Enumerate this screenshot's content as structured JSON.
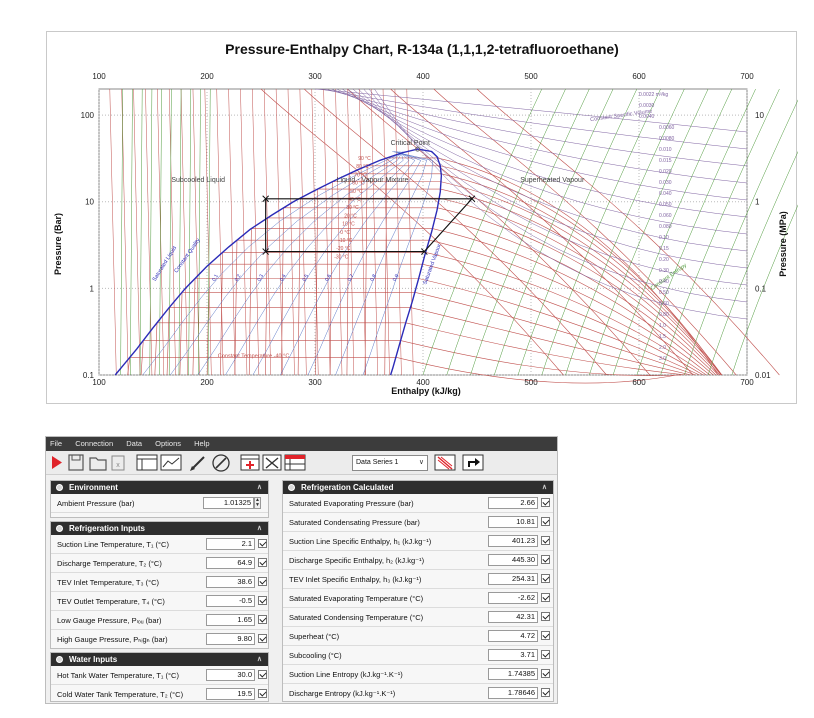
{
  "chart_data": {
    "type": "line",
    "title": "Pressure-Enthalpy Chart, R-134a (1,1,1,2-tetrafluoroethane)",
    "xlabel": "Enthalpy (kJ/kg)",
    "ylabel_left": "Pressure (Bar)",
    "ylabel_right": "Pressure (MPa)",
    "xlim": [
      100,
      700
    ],
    "ylim": [
      0.1,
      200
    ],
    "yscale": "log",
    "x_ticks": [
      "100",
      "200",
      "300",
      "400",
      "500",
      "600",
      "700"
    ],
    "y_ticks_left": [
      "0.1",
      "1",
      "10",
      "100"
    ],
    "y_ticks_right": [
      "0.01",
      "0.1",
      "1",
      "10"
    ],
    "region_labels": [
      "Subcooled Liquid",
      "Liquid - Vapour Mixture",
      "Superheated Vapour",
      "Critical Point"
    ],
    "curve_labels": [
      "Saturated Liquid",
      "Saturated Vapour",
      "Constant Quality",
      "Constant Entropy",
      "Constant Temperature -40 °C",
      "Constant Specific Volume"
    ],
    "quality_labels": [
      "0.1",
      "0.2",
      "0.3",
      "0.4",
      "0.5",
      "0.6",
      "0.7",
      "0.8",
      "0.9"
    ],
    "volume_labels": [
      "0.0022 m³/kg",
      "0.0030",
      "0.0040",
      "0.0060",
      "0.0080",
      "0.010",
      "0.015",
      "0.020",
      "0.030",
      "0.040",
      "0.050",
      "0.060",
      "0.080",
      "0.10",
      "0.15",
      "0.20",
      "0.30",
      "0.40",
      "0.50",
      "0.60",
      "0.80",
      "1.0",
      "1.5",
      "2.0",
      "3.0"
    ],
    "temperature_labels": [
      "90 °C",
      "80 °C",
      "70 °C",
      "60 °C",
      "50 °C",
      "40 °C",
      "30 °C",
      "20 °C",
      "10 °C",
      "0 °C",
      "-10 °C",
      "-20 °C",
      "-30 °C"
    ],
    "saturation_dome": {
      "liquid": [
        [
          115,
          0.1
        ],
        [
          135,
          0.2
        ],
        [
          150,
          0.35
        ],
        [
          165,
          0.6
        ],
        [
          180,
          1.0
        ],
        [
          200,
          1.8
        ],
        [
          220,
          3.0
        ],
        [
          240,
          4.8
        ],
        [
          260,
          7.0
        ],
        [
          280,
          10.0
        ],
        [
          300,
          13.5
        ],
        [
          320,
          18.0
        ],
        [
          340,
          23.5
        ],
        [
          360,
          30.0
        ],
        [
          380,
          36.5
        ],
        [
          395,
          40.5
        ]
      ],
      "vapour": [
        [
          395,
          40.5
        ],
        [
          408,
          38.0
        ],
        [
          413,
          33.0
        ],
        [
          416,
          26.0
        ],
        [
          417,
          20.0
        ],
        [
          416,
          13.0
        ],
        [
          413,
          8.0
        ],
        [
          408,
          4.5
        ],
        [
          402,
          2.5
        ],
        [
          396,
          1.3
        ],
        [
          390,
          0.7
        ],
        [
          384,
          0.4
        ],
        [
          378,
          0.22
        ],
        [
          372,
          0.12
        ],
        [
          370,
          0.1
        ]
      ]
    },
    "cycle": {
      "points": [
        [
          254.31,
          10.81
        ],
        [
          254.31,
          2.66
        ],
        [
          401.23,
          2.66
        ],
        [
          445.3,
          10.81
        ],
        [
          254.31,
          10.81
        ]
      ]
    }
  },
  "app": {
    "menu": [
      "File",
      "Connection",
      "Data",
      "Options",
      "Help"
    ],
    "series_select": "Data Series 1",
    "environment": {
      "title": "Environment",
      "rows": [
        {
          "label": "Ambient Pressure (bar)",
          "value": "1.01325"
        }
      ]
    },
    "refrigeration_inputs": {
      "title": "Refrigeration Inputs",
      "rows": [
        {
          "label": "Suction Line Temperature, T₁ (°C)",
          "value": "2.1"
        },
        {
          "label": "Discharge Temperature, T₂ (°C)",
          "value": "64.9"
        },
        {
          "label": "TEV Inlet Temperature, T₃ (°C)",
          "value": "38.6"
        },
        {
          "label": "TEV Outlet Temperature, T₄ (°C)",
          "value": "-0.5"
        },
        {
          "label": "Low Gauge Pressure, Pₗₒᵤ (bar)",
          "value": "1.65"
        },
        {
          "label": "High Gauge Pressure, Pₕᵢgₕ (bar)",
          "value": "9.80"
        }
      ]
    },
    "water_inputs": {
      "title": "Water Inputs",
      "rows": [
        {
          "label": "Hot Tank Water Temperature, T₁ (°C)",
          "value": "30.0"
        },
        {
          "label": "Cold Water Tank Temperature, T₂ (°C)",
          "value": "19.5"
        }
      ]
    },
    "refrigeration_calculated": {
      "title": "Refrigeration Calculated",
      "rows": [
        {
          "label": "Saturated Evaporating Pressure (bar)",
          "value": "2.66"
        },
        {
          "label": "Saturated Condensating Pressure (bar)",
          "value": "10.81"
        },
        {
          "label": "Suction Line Specific Enthalpy, h₁ (kJ.kg⁻¹)",
          "value": "401.23"
        },
        {
          "label": "Discharge Specific Enthalpy, h₂ (kJ.kg⁻¹)",
          "value": "445.30"
        },
        {
          "label": "TEV Inlet Specific Enthalpy, h₃ (kJ.kg⁻¹)",
          "value": "254.31"
        },
        {
          "label": "Saturated Evaporating Temperature (°C)",
          "value": "-2.62"
        },
        {
          "label": "Saturated Condensing Temperature (°C)",
          "value": "42.31"
        },
        {
          "label": "Superheat (°C)",
          "value": "4.72"
        },
        {
          "label": "Subcooling (°C)",
          "value": "3.71"
        },
        {
          "label": "Suction Line Entropy (kJ.kg⁻¹.K⁻¹)",
          "value": "1.74385"
        },
        {
          "label": "Discharge Entropy (kJ.kg⁻¹.K⁻¹)",
          "value": "1.78646"
        }
      ]
    }
  }
}
